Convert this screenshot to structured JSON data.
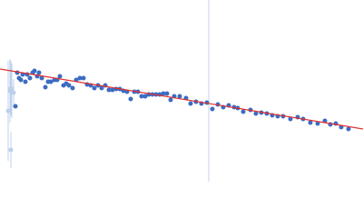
{
  "chart_data": {
    "type": "scatter",
    "xlim": [
      0,
      400
    ],
    "ylim": [
      0,
      200
    ],
    "series": [
      {
        "color": "#bcd0ec",
        "x": [
          9,
          11,
          12,
          13,
          12,
          15
        ],
        "values": [
          78,
          100,
          103,
          100,
          35,
          98
        ],
        "errors": [
          55,
          35,
          30,
          30,
          20,
          15
        ]
      },
      {
        "color": "#3b6cc2",
        "x": [
          17,
          19,
          21,
          23,
          25,
          28,
          30,
          33,
          36,
          38,
          41,
          43,
          46,
          50,
          53,
          56,
          60,
          63,
          66,
          70,
          73,
          76,
          80,
          84,
          88,
          92,
          96,
          100,
          104,
          108,
          112,
          116,
          120,
          124,
          128,
          132,
          136,
          140,
          144,
          148,
          152,
          156,
          160,
          164,
          168,
          172,
          176,
          180,
          184,
          188,
          192,
          198,
          205,
          210,
          216,
          222,
          228,
          234,
          240,
          246,
          252,
          258,
          262,
          268,
          276,
          282,
          288,
          294,
          300,
          306,
          312,
          320,
          328,
          334,
          342,
          350,
          358,
          364,
          370,
          376,
          384
        ],
        "values": [
          83,
          120,
          114,
          112,
          118,
          110,
          118,
          114,
          120,
          122,
          116,
          120,
          114,
          104,
          110,
          110,
          112,
          112,
          116,
          106,
          108,
          106,
          103,
          112,
          114,
          114,
          107,
          106,
          103,
          106,
          103,
          106,
          101,
          101,
          102,
          102,
          100,
          99,
          91,
          99,
          99,
          94,
          94,
          96,
          96,
          96,
          96,
          97,
          97,
          90,
          94,
          94,
          92,
          86,
          88,
          86,
          87,
          80,
          85,
          82,
          84,
          82,
          81,
          77,
          79,
          75,
          76,
          75,
          73,
          72,
          72,
          69,
          71,
          69,
          65,
          64,
          67,
          63,
          64,
          60,
          58
        ]
      }
    ],
    "fit": {
      "color": "#e03030",
      "x": [
        0,
        400
      ],
      "values": [
        124,
        58
      ]
    },
    "vline": {
      "color": "#c9d2e3",
      "x": 230
    }
  }
}
